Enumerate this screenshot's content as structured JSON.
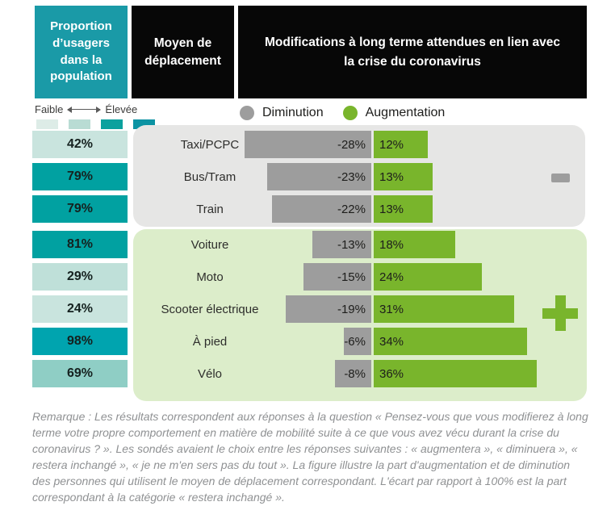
{
  "header": {
    "col1": "Proportion d’usagers dans la population",
    "col2": "Moyen de déplacement",
    "col3": "Modifications à long terme attendues en lien avec la crise du coronavirus"
  },
  "scale": {
    "low_label": "Faible",
    "high_label": "Élevée",
    "swatches": [
      "#ddece7",
      "#b9dcd4",
      "#0ba19e",
      "#0c93a3"
    ]
  },
  "legend": {
    "decrease": {
      "label": "Diminution",
      "color": "#9d9d9d"
    },
    "increase": {
      "label": "Augmentation",
      "color": "#79b52c"
    }
  },
  "colors": {
    "header_teal": "#1a9aa7",
    "header_black": "#070707",
    "panel_minus_bg": "#e6e6e5",
    "panel_plus_bg": "#dcedca",
    "bar_decrease": "#9d9d9d",
    "bar_increase": "#79b52c"
  },
  "rows": [
    {
      "proportion": "42%",
      "proportion_color": "#c9e4de",
      "mode": "Taxi/PCPC",
      "decrease": 28,
      "decrease_label": "-28%",
      "increase": 12,
      "increase_label": "12%",
      "group": "minus"
    },
    {
      "proportion": "79%",
      "proportion_color": "#01a1a1",
      "mode": "Bus/Tram",
      "decrease": 23,
      "decrease_label": "-23%",
      "increase": 13,
      "increase_label": "13%",
      "group": "minus"
    },
    {
      "proportion": "79%",
      "proportion_color": "#01a1a1",
      "mode": "Train",
      "decrease": 22,
      "decrease_label": "-22%",
      "increase": 13,
      "increase_label": "13%",
      "group": "minus"
    },
    {
      "proportion": "81%",
      "proportion_color": "#01a1a1",
      "mode": "Voiture",
      "decrease": 13,
      "decrease_label": "-13%",
      "increase": 18,
      "increase_label": "18%",
      "group": "plus"
    },
    {
      "proportion": "29%",
      "proportion_color": "#bfe0d9",
      "mode": "Moto",
      "decrease": 15,
      "decrease_label": "-15%",
      "increase": 24,
      "increase_label": "24%",
      "group": "plus"
    },
    {
      "proportion": "24%",
      "proportion_color": "#c9e4de",
      "mode": "Scooter électrique",
      "decrease": 19,
      "decrease_label": "-19%",
      "increase": 31,
      "increase_label": "31%",
      "group": "plus"
    },
    {
      "proportion": "98%",
      "proportion_color": "#00a4af",
      "mode": "À pied",
      "decrease": 6,
      "decrease_label": "-6%",
      "increase": 34,
      "increase_label": "34%",
      "group": "plus"
    },
    {
      "proportion": "69%",
      "proportion_color": "#8fcec5",
      "mode": "Vélo",
      "decrease": 8,
      "decrease_label": "-8%",
      "increase": 36,
      "increase_label": "36%",
      "group": "plus"
    }
  ],
  "note": "Remarque : Les résultats correspondent aux réponses à la question « Pensez-vous que vous modifierez à long terme votre propre comportement en matière de mobilité suite à ce que vous avez vécu durant la crise du coronavirus ? ». Les sondés avaient le choix entre les réponses suivantes : « augmentera », « diminuera », « restera inchangé », « je ne m'en sers pas du tout ». La figure illustre la part d'augmentation et de diminution des personnes qui utilisent le moyen de déplacement correspondant. L'écart par rapport à 100% est la part correspondant à la catégorie « restera inchangé ».",
  "chart_data": {
    "type": "bar",
    "orientation": "horizontal-diverging",
    "title": "Modifications à long terme attendues en lien avec la crise du coronavirus",
    "categories": [
      "Taxi/PCPC",
      "Bus/Tram",
      "Train",
      "Voiture",
      "Moto",
      "Scooter électrique",
      "À pied",
      "Vélo"
    ],
    "series": [
      {
        "name": "Diminution",
        "values": [
          -28,
          -23,
          -22,
          -13,
          -15,
          -19,
          -6,
          -8
        ],
        "color": "#9d9d9d"
      },
      {
        "name": "Augmentation",
        "values": [
          12,
          13,
          13,
          18,
          24,
          31,
          34,
          36
        ],
        "color": "#79b52c"
      }
    ],
    "proportion_usagers_population": [
      42,
      79,
      79,
      81,
      29,
      24,
      98,
      69
    ],
    "groups": [
      {
        "symbol": "-",
        "categories": [
          "Taxi/PCPC",
          "Bus/Tram",
          "Train"
        ]
      },
      {
        "symbol": "+",
        "categories": [
          "Voiture",
          "Moto",
          "Scooter électrique",
          "À pied",
          "Vélo"
        ]
      }
    ],
    "legend_position": "top",
    "grid": false,
    "xlim": [
      -53,
      47
    ],
    "value_labels": "inside-near-axis"
  }
}
